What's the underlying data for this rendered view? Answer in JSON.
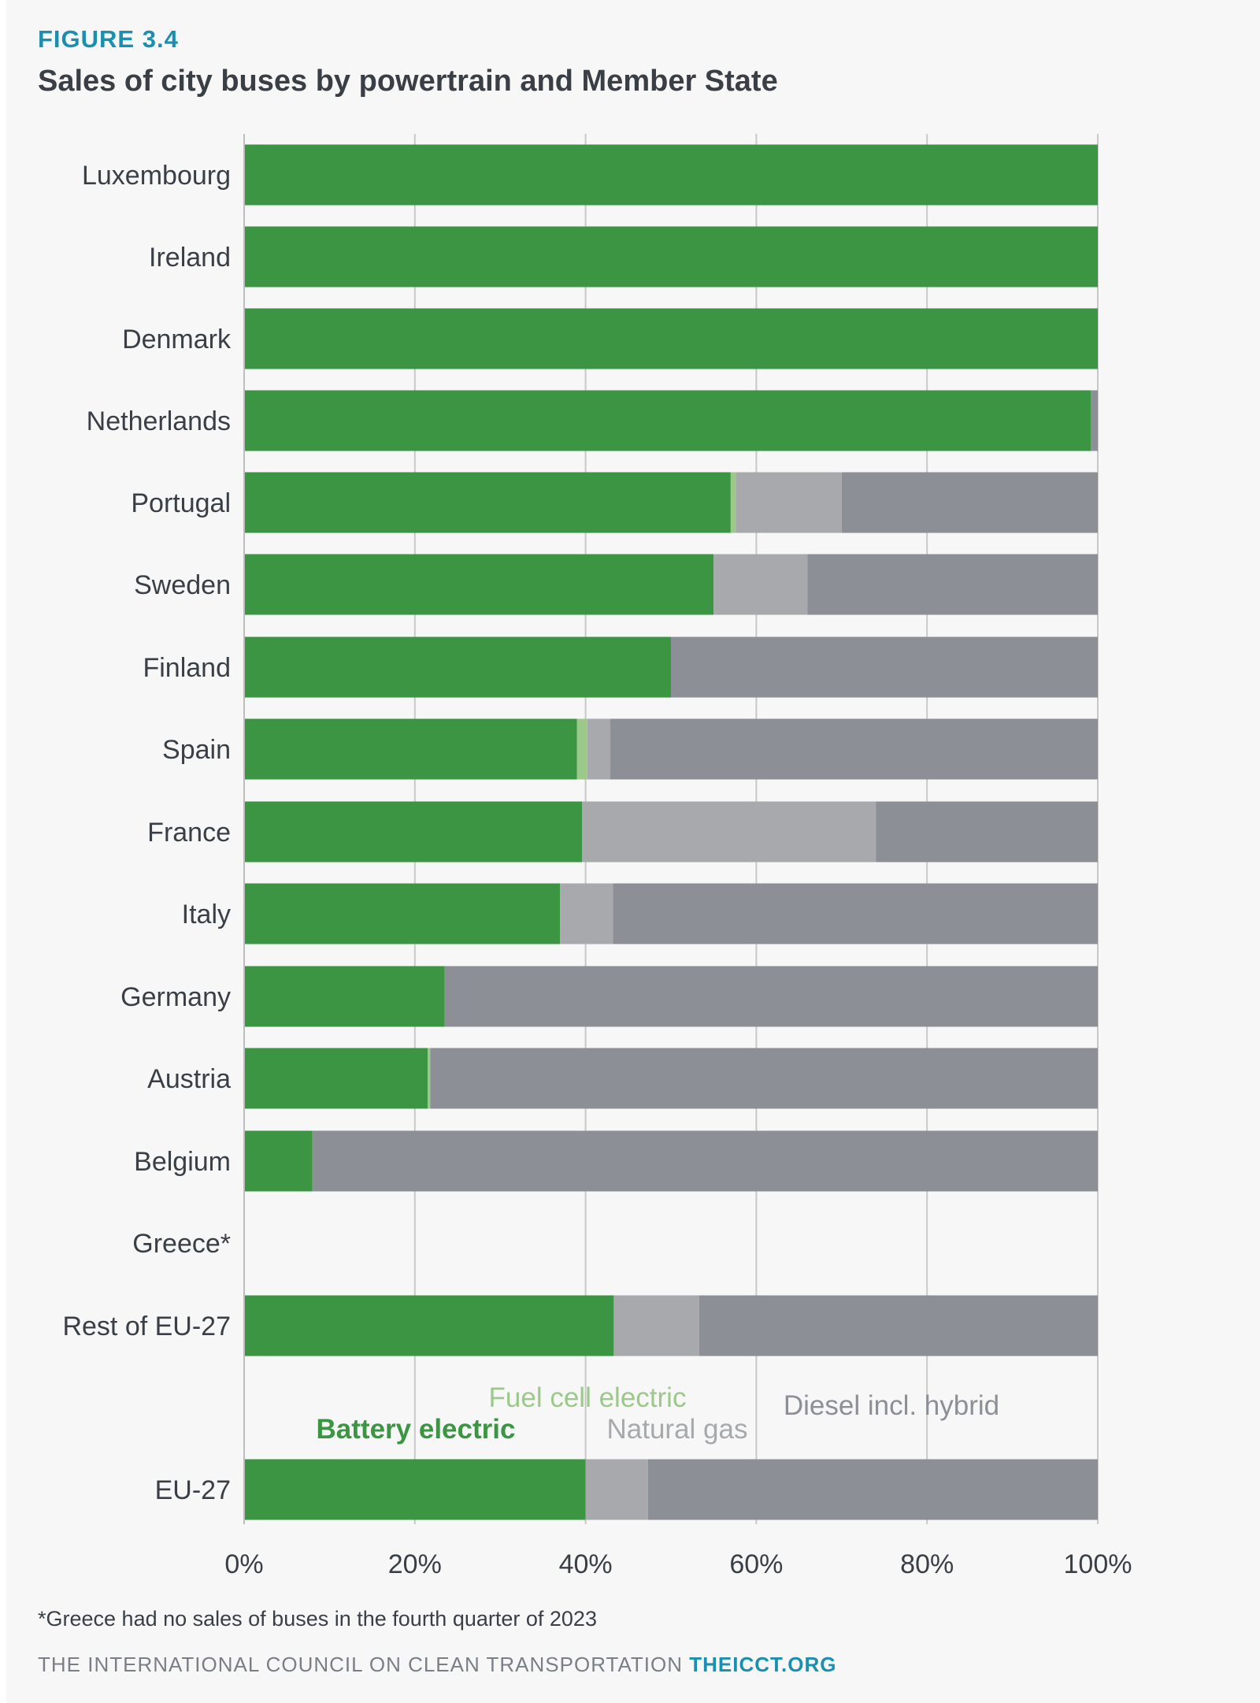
{
  "figure_label": "FIGURE 3.4",
  "footnote": "*Greece had no sales of buses in the fourth quarter of 2023",
  "credit": {
    "org": "THE INTERNATIONAL COUNCIL ON CLEAN TRANSPORTATION",
    "site": "THEICCT.ORG"
  },
  "colors": {
    "battery_electric": "#3b9543",
    "fuel_cell_electric": "#9cc98a",
    "natural_gas": "#a7a9ac",
    "diesel_incl_hybrid": "#8c8f96",
    "gridline": "#c8c8c8",
    "label_text": "#3a3f46"
  },
  "chart_data": {
    "type": "bar",
    "orientation": "horizontal",
    "stacked": true,
    "title": "Sales of city buses by powertrain and Member State",
    "xlabel": "",
    "ylabel": "",
    "xlim": [
      0,
      100
    ],
    "xticks": [
      "0%",
      "20%",
      "40%",
      "60%",
      "80%",
      "100%"
    ],
    "grid": "vertical",
    "legend": "inline labels above EU-27 bar",
    "categories": [
      "Luxembourg",
      "Ireland",
      "Denmark",
      "Netherlands",
      "Portugal",
      "Sweden",
      "Finland",
      "Spain",
      "France",
      "Italy",
      "Germany",
      "Austria",
      "Belgium",
      "Greece*",
      "Rest of EU-27",
      "EU-27"
    ],
    "series": [
      {
        "name": "Battery electric",
        "values": [
          100,
          100,
          100,
          99.2,
          57.0,
          55.0,
          50.0,
          39.0,
          39.6,
          37.0,
          23.5,
          21.5,
          8.0,
          0,
          43.3,
          40.0
        ]
      },
      {
        "name": "Fuel cell electric",
        "values": [
          0,
          0,
          0,
          0,
          0.6,
          0,
          0,
          1.2,
          0,
          0,
          0,
          0.3,
          0,
          0,
          0,
          0
        ]
      },
      {
        "name": "Natural gas",
        "values": [
          0,
          0,
          0,
          0,
          12.4,
          11.0,
          0,
          2.7,
          34.4,
          6.2,
          0,
          0,
          0,
          0,
          10.0,
          7.3
        ]
      },
      {
        "name": "Diesel incl. hybrid",
        "values": [
          0,
          0,
          0,
          0.8,
          30.0,
          34.0,
          50.0,
          57.1,
          26.0,
          56.8,
          76.5,
          78.2,
          92.0,
          0,
          46.7,
          52.7
        ]
      }
    ]
  }
}
